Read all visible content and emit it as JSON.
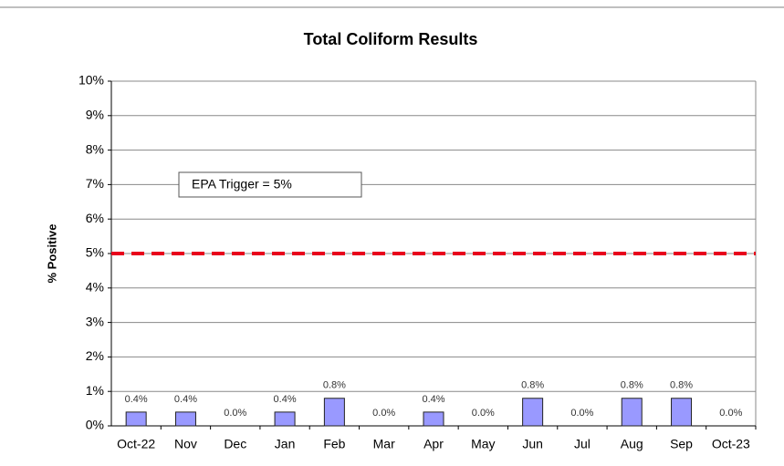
{
  "chart_data": {
    "type": "bar",
    "title": "Total Coliform Results",
    "y_label": "% Positive",
    "categories": [
      "Oct-22",
      "Nov",
      "Dec",
      "Jan",
      "Feb",
      "Mar",
      "Apr",
      "May",
      "Jun",
      "Jul",
      "Aug",
      "Sep",
      "Oct-23"
    ],
    "values": [
      0.4,
      0.4,
      0,
      0.4,
      0.8,
      0,
      0.4,
      0,
      0.8,
      0,
      0.8,
      0.8,
      0
    ],
    "value_labels": [
      "0.4%",
      "0.4%",
      "0.0%",
      "0.4%",
      "0.8%",
      "0.0%",
      "0.4%",
      "0.0%",
      "0.8%",
      "0.0%",
      "0.8%",
      "0.8%",
      "0.0%"
    ],
    "color": "#9999ff",
    "ylim": [
      0,
      10
    ],
    "yticks": [
      {
        "value": 0,
        "label": "0%"
      },
      {
        "value": 1,
        "label": "1%"
      },
      {
        "value": 2,
        "label": "2%"
      },
      {
        "value": 3,
        "label": "3%"
      },
      {
        "value": 4,
        "label": "4%"
      },
      {
        "value": 5,
        "label": "5%"
      },
      {
        "value": 6,
        "label": "6%"
      },
      {
        "value": 7,
        "label": "7%"
      },
      {
        "value": 8,
        "label": "8%"
      },
      {
        "value": 9,
        "label": "9%"
      },
      {
        "value": 10,
        "label": "10%"
      }
    ],
    "grid": true,
    "threshold": {
      "value": 5,
      "label": "EPA Trigger = 5%",
      "color": "#e8001c"
    }
  }
}
